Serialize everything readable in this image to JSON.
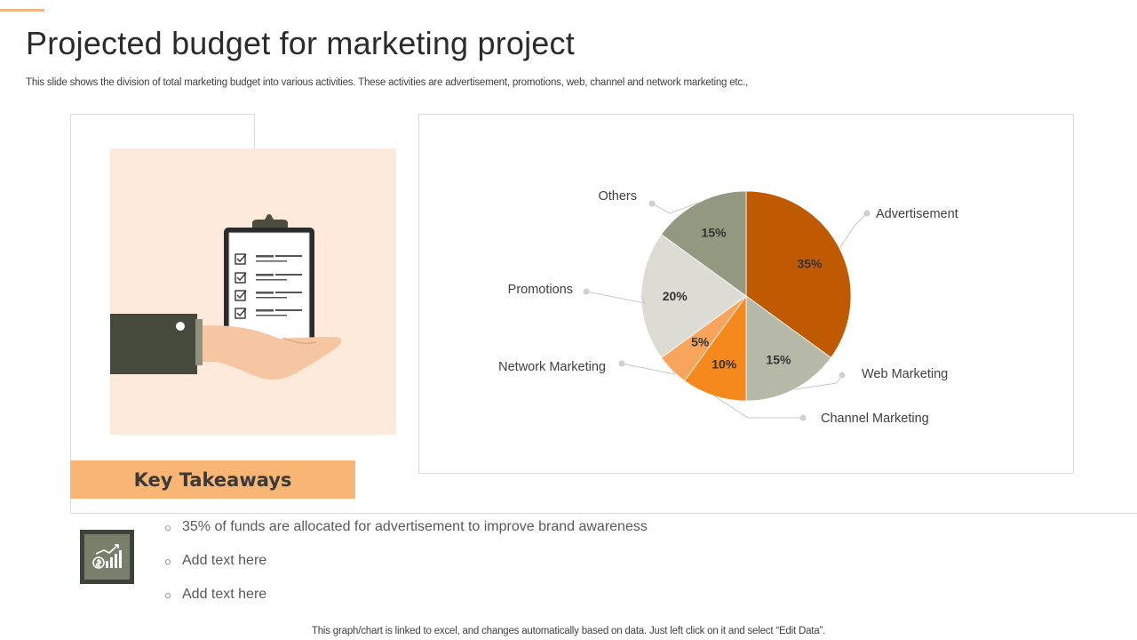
{
  "slide": {
    "title": "Projected budget for marketing project",
    "subtitle": "This slide shows the division of total marketing budget into various activities. These activities are advertisement, promotions, web, channel and network marketing etc.,",
    "footer_note": "This graph/chart is linked to excel,  and changes automatically based on data. Just left click on it and select “Edit Data”.",
    "accent_color": "#f4b183"
  },
  "illustration": {
    "icon": "hand-holding-clipboard-icon",
    "background": "#fdeadb"
  },
  "key_takeaways": {
    "heading": "Key Takeaways",
    "banner_color": "#f9b573",
    "icon": "money-growth-chart-icon",
    "items": [
      "35% of funds  are allocated for advertisement   to improve brand awareness",
      "Add text here",
      "Add text here"
    ]
  },
  "chart_data": {
    "type": "pie",
    "title": "",
    "start_angle_deg": 0,
    "direction": "clockwise",
    "slices": [
      {
        "name": "Advertisement",
        "value": 35,
        "label": "35%",
        "color": "#c05a02"
      },
      {
        "name": "Web Marketing",
        "value": 15,
        "label": "15%",
        "color": "#b7b9a8"
      },
      {
        "name": "Channel Marketing",
        "value": 10,
        "label": "10%",
        "color": "#f5891e"
      },
      {
        "name": "Network Marketing",
        "value": 5,
        "label": "5%",
        "color": "#f9a45c"
      },
      {
        "name": "Promotions",
        "value": 20,
        "label": "20%",
        "color": "#dcdcd4"
      },
      {
        "name": "Others",
        "value": 15,
        "label": "15%",
        "color": "#939880"
      }
    ],
    "legend": "callout-labels"
  }
}
